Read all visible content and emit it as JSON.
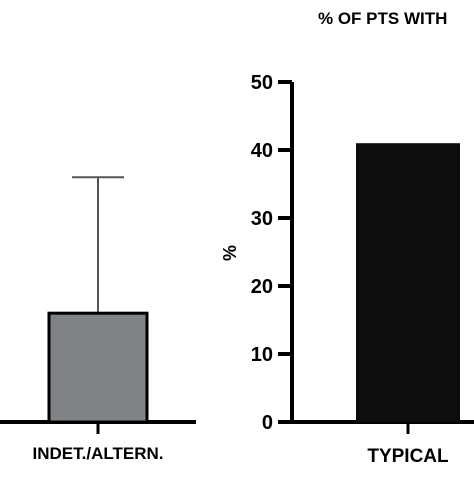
{
  "chart_data": [
    {
      "type": "bar",
      "title": "",
      "xlabel": "",
      "ylabel": "",
      "categories": [
        "INDET./ALTERN."
      ],
      "values": [
        16
      ],
      "error_bars": [
        {
          "upper": 36
        }
      ],
      "bar_color": "#7f8385",
      "error_color": "#555555"
    },
    {
      "type": "bar",
      "title": "% OF PTS WITH",
      "xlabel": "",
      "ylabel": "%",
      "categories": [
        "TYPICAL"
      ],
      "values": [
        41
      ],
      "ylim": [
        0,
        50
      ],
      "yticks": [
        0,
        10,
        20,
        30,
        40,
        50
      ],
      "bar_color": "#0d0d0d"
    }
  ]
}
